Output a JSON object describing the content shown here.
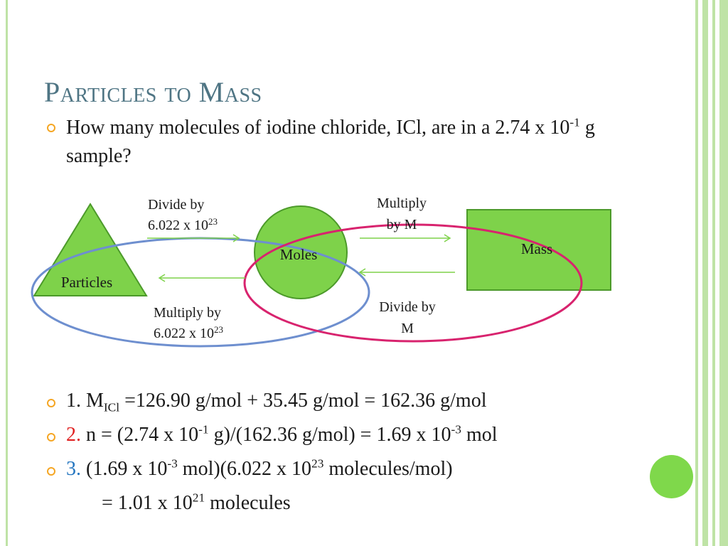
{
  "title": "Particles to Mass",
  "question": {
    "text_a": "How many molecules of iodine chloride, ICl, are in a 2.74 x 10",
    "sup": "-1",
    "text_b": " g sample?"
  },
  "diagram": {
    "particles": "Particles",
    "moles": "Moles",
    "mass": "Mass",
    "divide_avogadro_1": "Divide by",
    "divide_avogadro_2": "6.022 x 10",
    "divide_avogadro_exp": "23",
    "multiply_M_1": "Multiply",
    "multiply_M_2": "by M",
    "multiply_avogadro_1": "Multiply by",
    "multiply_avogadro_2": "6.022 x 10",
    "multiply_avogadro_exp": "23",
    "divide_M_1": "Divide by",
    "divide_M_2": "M",
    "colors": {
      "shape_fill": "#7ed24a",
      "shape_stroke": "#4c9a2a",
      "arrow": "#7ed24a",
      "blue_ellipse": "#6e8fcf",
      "pink_ellipse": "#d8236e"
    }
  },
  "steps": {
    "s1_num": "1. M",
    "s1_sub": "ICl",
    "s1_rest": " =126.90 g/mol + 35.45 g/mol = 162.36 g/mol",
    "s2_num": "2.",
    "s2_a": " n = (2.74 x 10",
    "s2_sup1": "-1",
    "s2_b": " g)/(162.36 g/mol) = 1.69 x 10",
    "s2_sup2": "-3",
    "s2_c": " mol",
    "s3_num": "3.",
    "s3_a": " (1.69 x 10",
    "s3_sup1": "-3",
    "s3_b": " mol)(6.022 x 10",
    "s3_sup2": "23",
    "s3_c": " molecules/mol)",
    "s4_a": "= 1.01 x 10",
    "s4_sup": "21",
    "s4_b": " molecules"
  }
}
